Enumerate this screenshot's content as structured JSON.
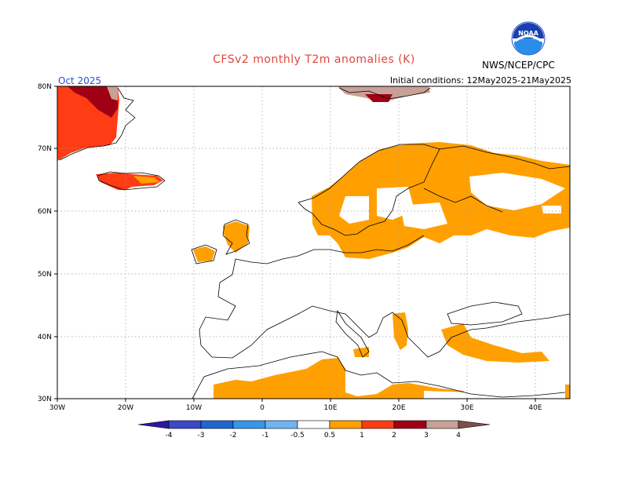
{
  "header": {
    "title": "CFSv2 monthly T2m anomalies (K)",
    "forecast_month": "Oct 2025",
    "initial_conditions": "Initial conditions: 12May2025-21May2025",
    "agency": "NWS/NCEP/CPC",
    "logo_text": "NOAA"
  },
  "map": {
    "lon_range": [
      -30,
      45
    ],
    "lat_range": [
      30,
      80
    ],
    "lon_ticks": [
      "30W",
      "20W",
      "10W",
      "0",
      "10E",
      "20E",
      "30E",
      "40E"
    ],
    "lat_ticks": [
      "80N",
      "70N",
      "60N",
      "50N",
      "40N",
      "30N"
    ],
    "grid": true
  },
  "colorbar": {
    "labels": [
      "-4",
      "-3",
      "-2",
      "-1",
      "-0.5",
      "0.5",
      "1",
      "2",
      "3",
      "4"
    ],
    "colors": [
      "#2a1aa0",
      "#3b48c8",
      "#1f67d0",
      "#3896ea",
      "#6fb4f2",
      "#ffffff",
      "#ffa000",
      "#ff3c14",
      "#a00014",
      "#c8a096",
      "#7a5048"
    ]
  }
}
